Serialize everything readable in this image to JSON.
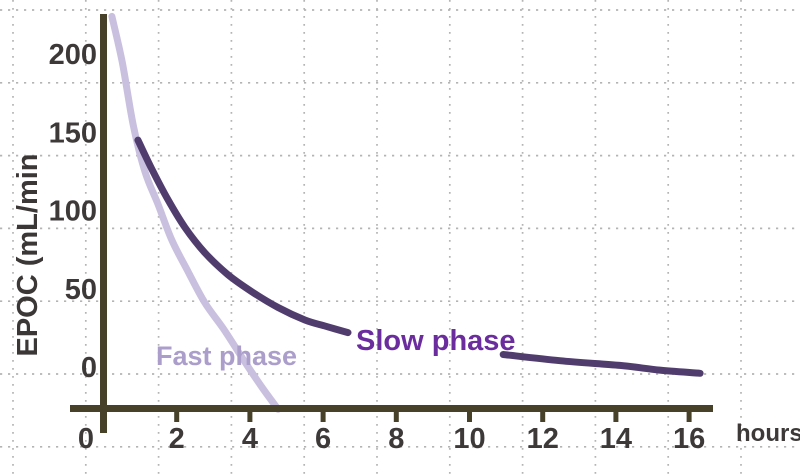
{
  "chart_data": {
    "type": "line",
    "title": "",
    "xlabel": "hours",
    "ylabel": "EPOC (mL/min",
    "x_axis": {
      "ticks": [
        0,
        2,
        4,
        6,
        8,
        10,
        12,
        14,
        16
      ],
      "unit_label": "hours",
      "range_hours": [
        0,
        17
      ]
    },
    "y_axis": {
      "ticks": [
        200,
        150,
        100,
        50,
        0
      ],
      "range": [
        -30,
        230
      ]
    },
    "grid": "dotted square grid",
    "legend_position": "none",
    "series": [
      {
        "name": "Fast phase",
        "color": "#c9c0df",
        "label_color": "#ab9ecb",
        "segments": [
          [
            [
              0.23,
              224
            ],
            [
              0.51,
              195
            ],
            [
              0.81,
              155
            ],
            [
              1.13,
              125
            ],
            [
              1.49,
              104
            ],
            [
              1.87,
              81
            ],
            [
              2.31,
              61
            ],
            [
              2.77,
              41
            ],
            [
              3.29,
              24
            ],
            [
              3.87,
              3
            ],
            [
              4.33,
              -13
            ],
            [
              4.77,
              -27
            ]
          ]
        ]
      },
      {
        "name": "Slow phase",
        "color": "#503d6e",
        "label_color": "#6b2d9e",
        "segments": [
          [
            [
              0.94,
              145
            ],
            [
              1.33,
              126
            ],
            [
              1.76,
              107
            ],
            [
              2.23,
              89
            ],
            [
              2.77,
              73
            ],
            [
              3.4,
              59
            ],
            [
              4.06,
              48
            ],
            [
              4.77,
              38
            ],
            [
              5.51,
              30
            ],
            [
              6.08,
              26
            ],
            [
              6.68,
              22
            ]
          ],
          [
            [
              10.92,
              8
            ],
            [
              12.47,
              4
            ],
            [
              14.11,
              1
            ],
            [
              15.2,
              -2
            ],
            [
              16.3,
              -4
            ]
          ]
        ]
      }
    ],
    "annotations": [
      {
        "text": "Fast phase",
        "color": "#ab9ecb"
      },
      {
        "text": "Slow phase",
        "color": "#6b2d9e"
      }
    ]
  },
  "labels": {
    "y_axis_title": "EPOC (mL/min",
    "x_unit_label": "hours",
    "fast_phase": "Fast phase",
    "slow_phase": "Slow phase"
  },
  "colors": {
    "axis": "#48412a",
    "tick_label": "#3d3939",
    "grid_dot": "#b4b4b4",
    "fast_curve": "#c9c0df",
    "fast_label": "#ab9ecb",
    "slow_curve": "#503d6e",
    "slow_label": "#6b2d9e",
    "background": "#ffffff"
  }
}
